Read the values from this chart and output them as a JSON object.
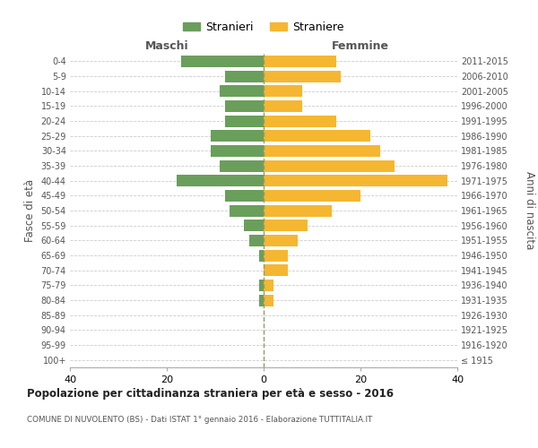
{
  "age_groups": [
    "100+",
    "95-99",
    "90-94",
    "85-89",
    "80-84",
    "75-79",
    "70-74",
    "65-69",
    "60-64",
    "55-59",
    "50-54",
    "45-49",
    "40-44",
    "35-39",
    "30-34",
    "25-29",
    "20-24",
    "15-19",
    "10-14",
    "5-9",
    "0-4"
  ],
  "birth_years": [
    "≤ 1915",
    "1916-1920",
    "1921-1925",
    "1926-1930",
    "1931-1935",
    "1936-1940",
    "1941-1945",
    "1946-1950",
    "1951-1955",
    "1956-1960",
    "1961-1965",
    "1966-1970",
    "1971-1975",
    "1976-1980",
    "1981-1985",
    "1986-1990",
    "1991-1995",
    "1996-2000",
    "2001-2005",
    "2006-2010",
    "2011-2015"
  ],
  "maschi": [
    0,
    0,
    0,
    0,
    1,
    1,
    0,
    1,
    3,
    4,
    7,
    8,
    18,
    9,
    11,
    11,
    8,
    8,
    9,
    8,
    17
  ],
  "femmine": [
    0,
    0,
    0,
    0,
    2,
    2,
    5,
    5,
    7,
    9,
    14,
    20,
    38,
    27,
    24,
    22,
    15,
    8,
    8,
    16,
    15
  ],
  "maschi_color": "#6a9e5b",
  "femmine_color": "#f5b731",
  "background_color": "#ffffff",
  "grid_color": "#cccccc",
  "title": "Popolazione per cittadinanza straniera per età e sesso - 2016",
  "subtitle": "COMUNE DI NUVOLENTO (BS) - Dati ISTAT 1° gennaio 2016 - Elaborazione TUTTITALIA.IT",
  "xlabel_left": "Maschi",
  "xlabel_right": "Femmine",
  "ylabel_left": "Fasce di età",
  "ylabel_right": "Anni di nascita",
  "legend_maschi": "Stranieri",
  "legend_femmine": "Straniere",
  "xlim": 40,
  "dashed_line_color": "#999966"
}
